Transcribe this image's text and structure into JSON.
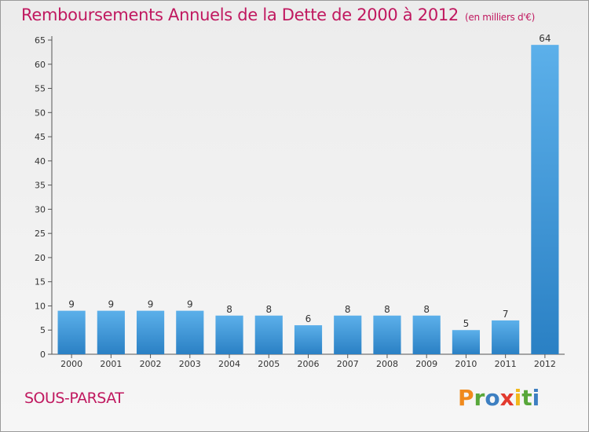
{
  "header": {
    "title": "Remboursements Annuels de la Dette de 2000 à 2012",
    "unit": "(en milliers d'€)"
  },
  "footer": {
    "commune": "SOUS-PARSAT",
    "logo": "Proxiti"
  },
  "colors": {
    "title": "#c0185f",
    "bar_light": "#5aaee8",
    "bar_dark": "#2a7fc2"
  },
  "chart_data": {
    "type": "bar",
    "title": "Remboursements Annuels de la Dette de 2000 à 2012",
    "subtitle": "(en milliers d'€)",
    "categories": [
      "2000",
      "2001",
      "2002",
      "2003",
      "2004",
      "2005",
      "2006",
      "2007",
      "2008",
      "2009",
      "2010",
      "2011",
      "2012"
    ],
    "values": [
      9,
      9,
      9,
      9,
      8,
      8,
      6,
      8,
      8,
      8,
      5,
      7,
      64
    ],
    "ylim": [
      0,
      65
    ],
    "yticks": [
      0,
      5,
      10,
      15,
      20,
      25,
      30,
      35,
      40,
      45,
      50,
      55,
      60,
      65
    ],
    "grid": false,
    "legend": "none"
  }
}
